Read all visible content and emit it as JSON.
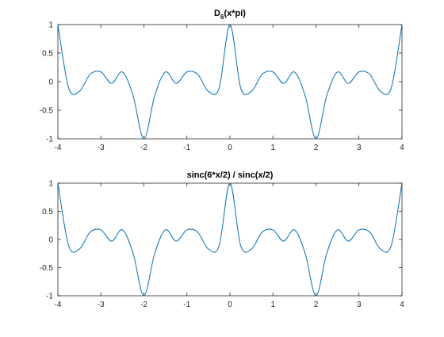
{
  "figure": {
    "background": "#ffffff"
  },
  "chart_data": [
    {
      "type": "line",
      "title": "D6(x*pi)",
      "title_main": "D",
      "title_sub": "6",
      "title_rest": "(x*pi)",
      "xlabel": "",
      "ylabel": "",
      "xlim": [
        -4,
        4
      ],
      "ylim": [
        -1,
        1
      ],
      "xticks": [
        -4,
        -3,
        -2,
        -1,
        0,
        1,
        2,
        3,
        4
      ],
      "yticks": [
        -1,
        -0.5,
        0,
        0.5,
        1
      ],
      "xtick_labels": [
        "-4",
        "-3",
        "-2",
        "-1",
        "0",
        "1",
        "2",
        "3",
        "4"
      ],
      "ytick_labels": [
        "-1",
        "-0.5",
        "0",
        "0.5",
        "1"
      ],
      "grid": false,
      "line_color": "#0072bd",
      "x": [
        -4,
        -3.75,
        -3.5,
        -3.25,
        -3,
        -2.75,
        -2.5,
        -2.25,
        -2,
        -1.75,
        -1.5,
        -1.25,
        -1,
        -0.75,
        -0.5,
        -0.25,
        0,
        0.25,
        0.5,
        0.75,
        1,
        1.25,
        1.5,
        1.75,
        2,
        2.25,
        2.5,
        2.75,
        3,
        3.25,
        3.5,
        3.75,
        4
      ],
      "series": [
        {
          "y": [
            1,
            -0.11,
            -0.17,
            0.13,
            0.17,
            -0.03,
            0.17,
            -0.25,
            -1,
            -0.25,
            0.17,
            -0.03,
            0.17,
            0.13,
            -0.17,
            -0.11,
            1,
            -0.11,
            -0.17,
            0.13,
            0.17,
            -0.03,
            0.17,
            -0.25,
            -1,
            -0.25,
            0.17,
            -0.03,
            0.17,
            0.13,
            -0.17,
            -0.11,
            1
          ]
        }
      ]
    },
    {
      "type": "line",
      "title": "sinc(6*x/2) / sinc(x/2)",
      "xlabel": "",
      "ylabel": "",
      "xlim": [
        -4,
        4
      ],
      "ylim": [
        -1,
        1
      ],
      "xticks": [
        -4,
        -3,
        -2,
        -1,
        0,
        1,
        2,
        3,
        4
      ],
      "yticks": [
        -1,
        -0.5,
        0,
        0.5,
        1
      ],
      "xtick_labels": [
        "-4",
        "-3",
        "-2",
        "-1",
        "0",
        "1",
        "2",
        "3",
        "4"
      ],
      "ytick_labels": [
        "-1",
        "-0.5",
        "0",
        "0.5",
        "1"
      ],
      "grid": false,
      "line_color": "#0072bd",
      "x": [
        -4,
        -3.75,
        -3.5,
        -3.25,
        -3,
        -2.75,
        -2.5,
        -2.25,
        -2,
        -1.75,
        -1.5,
        -1.25,
        -1,
        -0.75,
        -0.5,
        -0.25,
        0,
        0.25,
        0.5,
        0.75,
        1,
        1.25,
        1.5,
        1.75,
        2,
        2.25,
        2.5,
        2.75,
        3,
        3.25,
        3.5,
        3.75,
        4
      ],
      "series": [
        {
          "y": [
            1,
            -0.11,
            -0.17,
            0.13,
            0.17,
            -0.03,
            0.17,
            -0.25,
            -1,
            -0.25,
            0.17,
            -0.03,
            0.17,
            0.13,
            -0.17,
            -0.11,
            1,
            -0.11,
            -0.17,
            0.13,
            0.17,
            -0.03,
            0.17,
            -0.25,
            -1,
            -0.25,
            0.17,
            -0.03,
            0.17,
            0.13,
            -0.17,
            -0.11,
            1
          ]
        }
      ]
    }
  ]
}
